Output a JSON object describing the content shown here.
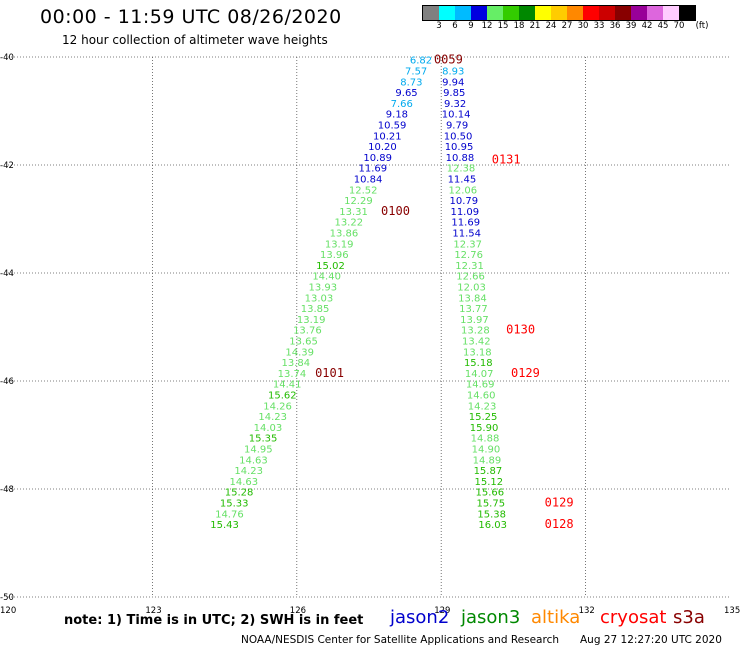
{
  "title": "00:00 - 11:59 UTC 08/26/2020",
  "subtitle": "12 hour collection of altimeter wave heights",
  "scale": {
    "unit": "(ft)",
    "levels": [
      {
        "label": "3",
        "color": "#808080"
      },
      {
        "label": "6",
        "color": "#00ffff"
      },
      {
        "label": "9",
        "color": "#00bbff"
      },
      {
        "label": "12",
        "color": "#0000e0"
      },
      {
        "label": "15",
        "color": "#66ee66"
      },
      {
        "label": "18",
        "color": "#33cc00"
      },
      {
        "label": "21",
        "color": "#008800"
      },
      {
        "label": "24",
        "color": "#ffff00"
      },
      {
        "label": "27",
        "color": "#ffcc00"
      },
      {
        "label": "30",
        "color": "#ff8800"
      },
      {
        "label": "33",
        "color": "#ff0000"
      },
      {
        "label": "36",
        "color": "#cc0000"
      },
      {
        "label": "39",
        "color": "#880000"
      },
      {
        "label": "42",
        "color": "#990099"
      },
      {
        "label": "45",
        "color": "#dd66dd"
      },
      {
        "label": "70",
        "color": "#ffccff"
      },
      {
        "label": "",
        "color": "#000000"
      }
    ]
  },
  "axes": {
    "lat_labels": [
      "-40",
      "-42",
      "-44",
      "-46",
      "-48",
      "-50"
    ],
    "lon_labels": [
      "120",
      "123",
      "126",
      "129",
      "132",
      "135"
    ]
  },
  "track_a": [
    {
      "lat": -40.05,
      "lon": 128.58,
      "swh": "6.82"
    },
    {
      "lat": -40.25,
      "lon": 128.48,
      "swh": "7.57"
    },
    {
      "lat": -40.45,
      "lon": 128.38,
      "swh": "8.73"
    },
    {
      "lat": -40.65,
      "lon": 128.28,
      "swh": "9.65"
    },
    {
      "lat": -40.85,
      "lon": 128.18,
      "swh": "7.66"
    },
    {
      "lat": -41.05,
      "lon": 128.08,
      "swh": "9.18"
    },
    {
      "lat": -41.25,
      "lon": 127.98,
      "swh": "10.59"
    },
    {
      "lat": -41.45,
      "lon": 127.88,
      "swh": "10.21"
    },
    {
      "lat": -41.65,
      "lon": 127.78,
      "swh": "10.20"
    },
    {
      "lat": -41.85,
      "lon": 127.68,
      "swh": "10.89"
    },
    {
      "lat": -42.05,
      "lon": 127.58,
      "swh": "11.69"
    },
    {
      "lat": -42.25,
      "lon": 127.48,
      "swh": "10.84"
    },
    {
      "lat": -42.45,
      "lon": 127.38,
      "swh": "12.52"
    },
    {
      "lat": -42.65,
      "lon": 127.28,
      "swh": "12.29"
    },
    {
      "lat": -42.85,
      "lon": 127.18,
      "swh": "13.31"
    },
    {
      "lat": -43.05,
      "lon": 127.08,
      "swh": "13.22"
    },
    {
      "lat": -43.25,
      "lon": 126.98,
      "swh": "13.86"
    },
    {
      "lat": -43.45,
      "lon": 126.88,
      "swh": "13.19"
    },
    {
      "lat": -43.65,
      "lon": 126.78,
      "swh": "13.96"
    },
    {
      "lat": -43.85,
      "lon": 126.7,
      "swh": "15.02"
    },
    {
      "lat": -44.05,
      "lon": 126.62,
      "swh": "14.40"
    },
    {
      "lat": -44.25,
      "lon": 126.54,
      "swh": "13.93"
    },
    {
      "lat": -44.45,
      "lon": 126.46,
      "swh": "13.03"
    },
    {
      "lat": -44.65,
      "lon": 126.38,
      "swh": "13.85"
    },
    {
      "lat": -44.85,
      "lon": 126.3,
      "swh": "13.19"
    },
    {
      "lat": -45.05,
      "lon": 126.22,
      "swh": "13.76"
    },
    {
      "lat": -45.25,
      "lon": 126.14,
      "swh": "13.65"
    },
    {
      "lat": -45.45,
      "lon": 126.06,
      "swh": "14.39"
    },
    {
      "lat": -45.65,
      "lon": 125.98,
      "swh": "13.84"
    },
    {
      "lat": -45.85,
      "lon": 125.9,
      "swh": "13.74"
    },
    {
      "lat": -46.05,
      "lon": 125.8,
      "swh": "14.41"
    },
    {
      "lat": -46.25,
      "lon": 125.7,
      "swh": "15.62"
    },
    {
      "lat": -46.45,
      "lon": 125.6,
      "swh": "14.26"
    },
    {
      "lat": -46.65,
      "lon": 125.5,
      "swh": "14.23"
    },
    {
      "lat": -46.85,
      "lon": 125.4,
      "swh": "14.03"
    },
    {
      "lat": -47.05,
      "lon": 125.3,
      "swh": "15.35"
    },
    {
      "lat": -47.25,
      "lon": 125.2,
      "swh": "14.95"
    },
    {
      "lat": -47.45,
      "lon": 125.1,
      "swh": "14.63"
    },
    {
      "lat": -47.65,
      "lon": 125.0,
      "swh": "14.23"
    },
    {
      "lat": -47.85,
      "lon": 124.9,
      "swh": "14.63"
    },
    {
      "lat": -48.05,
      "lon": 124.8,
      "swh": "15.28"
    },
    {
      "lat": -48.25,
      "lon": 124.7,
      "swh": "15.33"
    },
    {
      "lat": -48.45,
      "lon": 124.6,
      "swh": "14.76"
    },
    {
      "lat": -48.65,
      "lon": 124.5,
      "swh": "15.43"
    }
  ],
  "track_b": [
    {
      "lat": -40.25,
      "lon": 129.25,
      "swh": "8.93"
    },
    {
      "lat": -40.45,
      "lon": 129.25,
      "swh": "9.94"
    },
    {
      "lat": -40.65,
      "lon": 129.27,
      "swh": "9.85"
    },
    {
      "lat": -40.85,
      "lon": 129.29,
      "swh": "9.32"
    },
    {
      "lat": -41.05,
      "lon": 129.31,
      "swh": "10.14"
    },
    {
      "lat": -41.25,
      "lon": 129.33,
      "swh": "9.79"
    },
    {
      "lat": -41.45,
      "lon": 129.35,
      "swh": "10.50"
    },
    {
      "lat": -41.65,
      "lon": 129.37,
      "swh": "10.95"
    },
    {
      "lat": -41.85,
      "lon": 129.39,
      "swh": "10.88"
    },
    {
      "lat": -42.05,
      "lon": 129.41,
      "swh": "12.38"
    },
    {
      "lat": -42.25,
      "lon": 129.43,
      "swh": "11.45"
    },
    {
      "lat": -42.45,
      "lon": 129.45,
      "swh": "12.06"
    },
    {
      "lat": -42.65,
      "lon": 129.47,
      "swh": "10.79"
    },
    {
      "lat": -42.85,
      "lon": 129.49,
      "swh": "11.09"
    },
    {
      "lat": -43.05,
      "lon": 129.51,
      "swh": "11.69"
    },
    {
      "lat": -43.25,
      "lon": 129.53,
      "swh": "11.54"
    },
    {
      "lat": -43.45,
      "lon": 129.55,
      "swh": "12.37"
    },
    {
      "lat": -43.65,
      "lon": 129.57,
      "swh": "12.76"
    },
    {
      "lat": -43.85,
      "lon": 129.59,
      "swh": "12.31"
    },
    {
      "lat": -44.05,
      "lon": 129.61,
      "swh": "12.66"
    },
    {
      "lat": -44.25,
      "lon": 129.63,
      "swh": "12.03"
    },
    {
      "lat": -44.45,
      "lon": 129.65,
      "swh": "13.84"
    },
    {
      "lat": -44.65,
      "lon": 129.67,
      "swh": "13.77"
    },
    {
      "lat": -44.85,
      "lon": 129.69,
      "swh": "13.97"
    },
    {
      "lat": -45.05,
      "lon": 129.71,
      "swh": "13.28"
    },
    {
      "lat": -45.25,
      "lon": 129.73,
      "swh": "13.42"
    },
    {
      "lat": -45.45,
      "lon": 129.75,
      "swh": "13.18"
    },
    {
      "lat": -45.65,
      "lon": 129.77,
      "swh": "15.18"
    },
    {
      "lat": -45.85,
      "lon": 129.79,
      "swh": "14.07"
    },
    {
      "lat": -46.05,
      "lon": 129.81,
      "swh": "14.69"
    },
    {
      "lat": -46.25,
      "lon": 129.83,
      "swh": "14.60"
    },
    {
      "lat": -46.45,
      "lon": 129.85,
      "swh": "14.23"
    },
    {
      "lat": -46.65,
      "lon": 129.87,
      "swh": "15.25"
    },
    {
      "lat": -46.85,
      "lon": 129.89,
      "swh": "15.90"
    },
    {
      "lat": -47.05,
      "lon": 129.91,
      "swh": "14.88"
    },
    {
      "lat": -47.25,
      "lon": 129.93,
      "swh": "14.90"
    },
    {
      "lat": -47.45,
      "lon": 129.95,
      "swh": "14.89"
    },
    {
      "lat": -47.65,
      "lon": 129.97,
      "swh": "15.87"
    },
    {
      "lat": -47.85,
      "lon": 129.99,
      "swh": "15.12"
    },
    {
      "lat": -48.05,
      "lon": 130.01,
      "swh": "15.66"
    },
    {
      "lat": -48.25,
      "lon": 130.03,
      "swh": "15.75"
    },
    {
      "lat": -48.45,
      "lon": 130.05,
      "swh": "15.38"
    },
    {
      "lat": -48.65,
      "lon": 130.07,
      "swh": "16.03"
    }
  ],
  "time_labels": [
    {
      "text": "0059",
      "lat": -40.05,
      "lon": 129.15,
      "color": "#880000"
    },
    {
      "text": "0131",
      "lat": -41.9,
      "lon": 130.35,
      "color": "#ff0000"
    },
    {
      "text": "0100",
      "lat": -42.85,
      "lon": 128.05,
      "color": "#880000"
    },
    {
      "text": "0130",
      "lat": -45.05,
      "lon": 130.65,
      "color": "#ff0000"
    },
    {
      "text": "0129",
      "lat": -45.85,
      "lon": 130.75,
      "color": "#ff0000"
    },
    {
      "text": "0101",
      "lat": -45.85,
      "lon": 126.68,
      "color": "#880000"
    },
    {
      "text": "0129",
      "lat": -48.25,
      "lon": 131.45,
      "color": "#ff0000"
    },
    {
      "text": "0128",
      "lat": -48.65,
      "lon": 131.45,
      "color": "#ff0000"
    }
  ],
  "note": "note: 1) Time is in UTC; 2) SWH is in feet",
  "satellites": [
    {
      "name": "jason2",
      "color": "#0000cc"
    },
    {
      "name": "jason3",
      "color": "#008800"
    },
    {
      "name": "altika",
      "color": "#ff8800"
    },
    {
      "name": "cryosat",
      "color": "#ff0000"
    },
    {
      "name": "s3a",
      "color": "#880000"
    }
  ],
  "credit": "NOAA/NESDIS Center for Satellite Applications and Research",
  "timestamp": "Aug 27 12:27:20 UTC 2020"
}
